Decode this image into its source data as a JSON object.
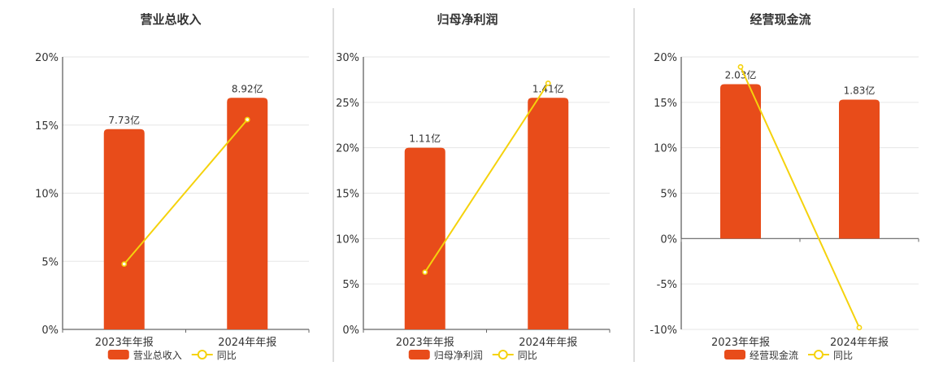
{
  "chart_data": [
    {
      "type": "bar",
      "title": "营业总收入",
      "categories": [
        "2023年年报",
        "2024年年报"
      ],
      "series": [
        {
          "name": "营业总收入",
          "type": "bar",
          "values": [
            14.7,
            17.0
          ],
          "labels": [
            "7.73亿",
            "8.92亿"
          ],
          "color": "#E84C1A"
        },
        {
          "name": "同比",
          "type": "line",
          "values": [
            4.8,
            15.4
          ],
          "color": "#F5D20C"
        }
      ],
      "yticks": [
        "0%",
        "5%",
        "10%",
        "15%",
        "20%"
      ],
      "ylim": [
        0,
        20
      ],
      "grid": true,
      "legend": "bottom"
    },
    {
      "type": "bar",
      "title": "归母净利润",
      "categories": [
        "2023年年报",
        "2024年年报"
      ],
      "series": [
        {
          "name": "归母净利润",
          "type": "bar",
          "values": [
            20.0,
            25.5
          ],
          "labels": [
            "1.11亿",
            "1.41亿"
          ],
          "color": "#E84C1A"
        },
        {
          "name": "同比",
          "type": "line",
          "values": [
            6.3,
            27.1
          ],
          "color": "#F5D20C"
        }
      ],
      "yticks": [
        "0%",
        "5%",
        "10%",
        "15%",
        "20%",
        "25%",
        "30%"
      ],
      "ylim": [
        0,
        30
      ],
      "grid": true,
      "legend": "bottom"
    },
    {
      "type": "bar",
      "title": "经营现金流",
      "categories": [
        "2023年年报",
        "2024年年报"
      ],
      "series": [
        {
          "name": "经营现金流",
          "type": "bar",
          "values": [
            17.0,
            15.3
          ],
          "labels": [
            "2.03亿",
            "1.83亿"
          ],
          "color": "#E84C1A"
        },
        {
          "name": "同比",
          "type": "line",
          "values": [
            18.9,
            -9.8
          ],
          "color": "#F5D20C"
        }
      ],
      "yticks": [
        "-10%",
        "-5%",
        "0%",
        "5%",
        "10%",
        "15%",
        "20%"
      ],
      "ylim": [
        -10,
        20
      ],
      "grid": true,
      "legend": "bottom"
    }
  ]
}
